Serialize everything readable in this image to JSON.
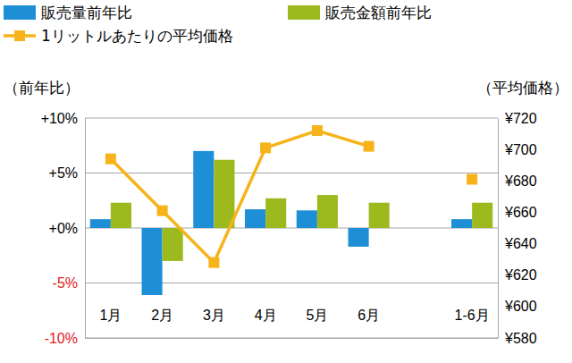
{
  "chart_data": {
    "type": "bar",
    "categories": [
      "1月",
      "2月",
      "3月",
      "4月",
      "5月",
      "6月",
      null,
      "1-6月"
    ],
    "series": [
      {
        "name": "販売量前年比",
        "color": "#1e8fd6",
        "values": [
          0.8,
          -6.1,
          7.0,
          1.7,
          1.6,
          -1.7,
          null,
          0.8
        ]
      },
      {
        "name": "販売金額前年比",
        "color": "#9cba1e",
        "values": [
          2.3,
          -3.0,
          6.2,
          2.7,
          3.0,
          2.3,
          null,
          2.3
        ]
      },
      {
        "name": "1リットルあたりの平均価格",
        "color": "#f6b31a",
        "type": "line",
        "marker": "square",
        "axis": "y2",
        "values": [
          694,
          661,
          628,
          701,
          712,
          702,
          null,
          681
        ]
      }
    ],
    "ylim": [
      -10,
      10
    ],
    "yticks": [
      {
        "value": -10,
        "label": "-10%"
      },
      {
        "value": -5,
        "label": "-5%"
      },
      {
        "value": 0,
        "label": "+0%"
      },
      {
        "value": 5,
        "label": "+5%"
      },
      {
        "value": 10,
        "label": "+10%"
      }
    ],
    "y2lim": [
      580,
      720
    ],
    "y2ticks": [
      {
        "value": 580,
        "label": "¥580"
      },
      {
        "value": 600,
        "label": "¥600"
      },
      {
        "value": 620,
        "label": "¥620"
      },
      {
        "value": 640,
        "label": "¥640"
      },
      {
        "value": 660,
        "label": "¥660"
      },
      {
        "value": 680,
        "label": "¥680"
      },
      {
        "value": 700,
        "label": "¥700"
      },
      {
        "value": 720,
        "label": "¥720"
      }
    ],
    "y_label": "（前年比）",
    "y2_label": "（平均価格）",
    "grid": true,
    "legend": "top"
  }
}
